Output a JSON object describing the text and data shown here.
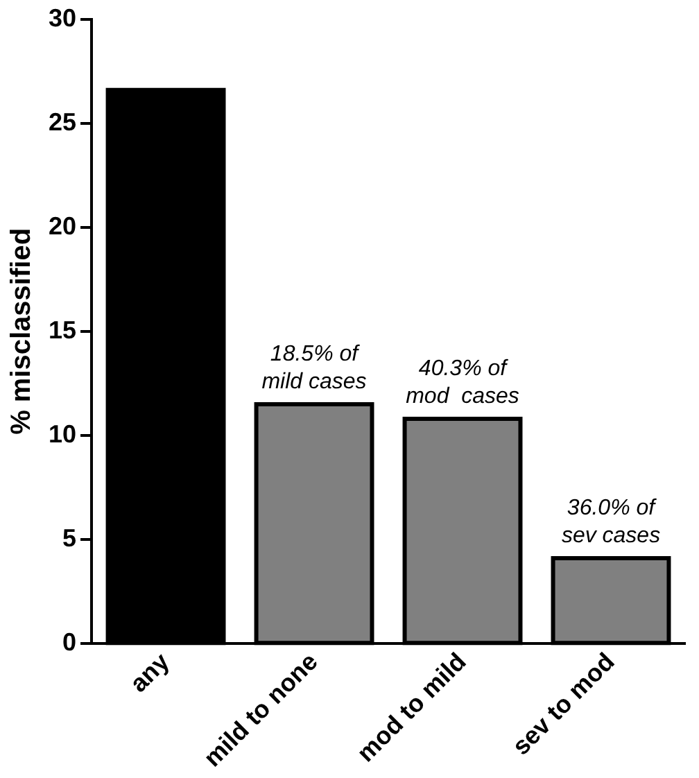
{
  "chart_data": {
    "type": "bar",
    "ylabel": "% misclassified",
    "categories": [
      "any",
      "mild to none",
      "mod to mild",
      "sev to mod"
    ],
    "values": [
      26.6,
      11.5,
      10.8,
      4.1
    ],
    "colors": [
      "#000000",
      "#808080",
      "#808080",
      "#808080"
    ],
    "ylim": [
      0,
      30
    ],
    "yticks": [
      0,
      5,
      10,
      15,
      20,
      25,
      30
    ],
    "grid": false,
    "legend": false,
    "annotations": [
      {
        "text": "18.5% of\nmild cases",
        "x": "mild to none",
        "y": 11.5
      },
      {
        "text": "40.3% of\nmod  cases",
        "x": "mod to mild",
        "y": 10.8
      },
      {
        "text": "36.0% of\nsev cases",
        "x": "sev to mod",
        "y": 4.1
      }
    ]
  }
}
